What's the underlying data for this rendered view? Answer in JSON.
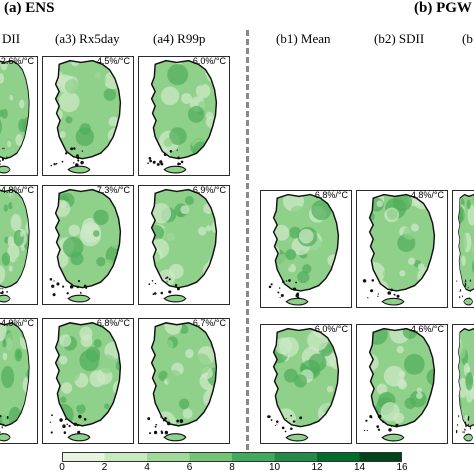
{
  "sections": {
    "a": {
      "title": "(a) ENS"
    },
    "b": {
      "title": "(b) PGW"
    }
  },
  "column_labels": {
    "a_partial": "DII",
    "a3": "(a3) Rx5day",
    "a4": "(a4) R99p",
    "b1": "(b1) Mean",
    "b2": "(b2) SDII",
    "b3_partial": "(b"
  },
  "panels": {
    "a_row1": [
      "2.6%/°C",
      "4.5%/°C",
      "6.0%/°C"
    ],
    "a_row2": [
      "4.8%/°C",
      "7.3%/°C",
      "6.9%/°C"
    ],
    "a_row3": [
      "4.9%/°C",
      "6.8%/°C",
      "6.7%/°C"
    ],
    "b_row1": [
      "6.8%/°C",
      "4.8%/°C"
    ],
    "b_row2": [
      "6.0%/°C",
      "4.6%/°C"
    ]
  },
  "colorbar": {
    "ticks": [
      "0",
      "2",
      "4",
      "6",
      "8",
      "10",
      "12",
      "14",
      "16"
    ],
    "colors": [
      "#f7fcf5",
      "#e5f5e0",
      "#c7e9c0",
      "#a1d99b",
      "#74c476",
      "#41ab5d",
      "#238b45",
      "#006d2c",
      "#00441b"
    ]
  },
  "map_colors": {
    "light": "#cfeac8",
    "mid": "#8fd18a",
    "dark": "#4fae5a",
    "coast": "#111111"
  }
}
